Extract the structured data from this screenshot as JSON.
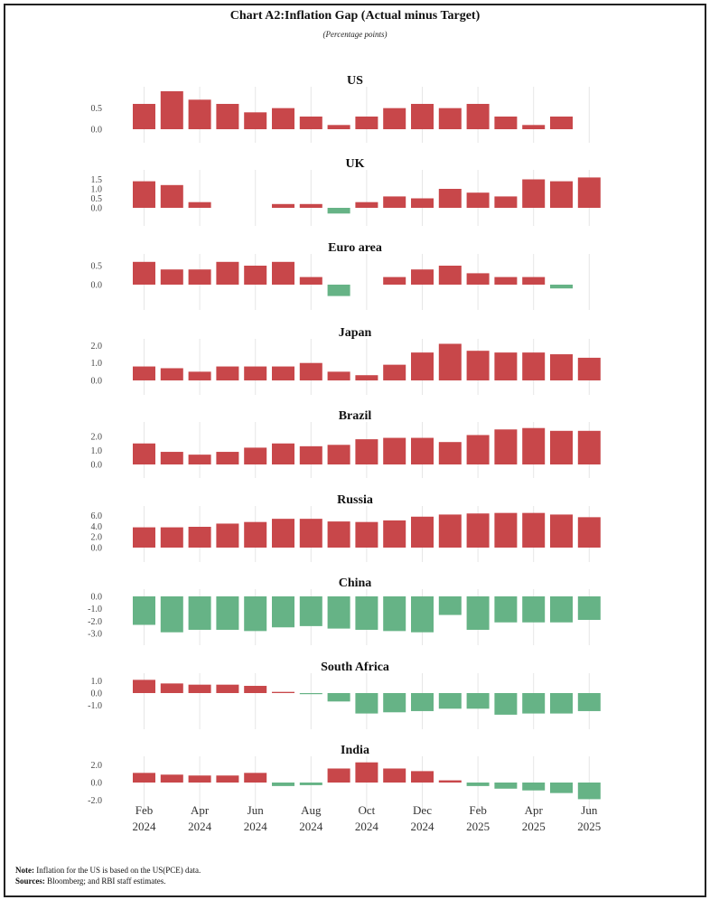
{
  "title": "Chart A2:Inflation Gap (Actual minus Target)",
  "subtitle": "(Percentage points)",
  "note_label": "Note:",
  "note_text": "Inflation for the US is based on the US(PCE) data.",
  "sources_label": "Sources:",
  "sources_text": "Bloomberg; and RBI staff estimates.",
  "colors": {
    "positive": "#C8474A",
    "negative": "#66B386",
    "grid": "#E6E6E6"
  },
  "chart_data": {
    "type": "bar",
    "layout": "small-multiples, vertically stacked, shared x axis",
    "grid": "vertical gridlines at labelled months",
    "months": [
      "Feb 2024",
      "Mar 2024",
      "Apr 2024",
      "May 2024",
      "Jun 2024",
      "Jul 2024",
      "Aug 2024",
      "Sep 2024",
      "Oct 2024",
      "Nov 2024",
      "Dec 2024",
      "Jan 2025",
      "Feb 2025",
      "Mar 2025",
      "Apr 2025",
      "May 2025",
      "Jun 2025"
    ],
    "x_tick_labels": [
      {
        "month": "Feb",
        "year": "2024"
      },
      {
        "month": "Apr",
        "year": "2024"
      },
      {
        "month": "Jun",
        "year": "2024"
      },
      {
        "month": "Aug",
        "year": "2024"
      },
      {
        "month": "Oct",
        "year": "2024"
      },
      {
        "month": "Dec",
        "year": "2024"
      },
      {
        "month": "Feb",
        "year": "2025"
      },
      {
        "month": "Apr",
        "year": "2025"
      },
      {
        "month": "Jun",
        "year": "2025"
      }
    ],
    "panels": [
      {
        "name": "US",
        "yticks": [
          "0.0",
          "0.5"
        ],
        "ylim": [
          0,
          1.0
        ],
        "values": [
          0.6,
          0.9,
          0.7,
          0.6,
          0.4,
          0.5,
          0.3,
          0.1,
          0.3,
          0.5,
          0.6,
          0.5,
          0.6,
          0.3,
          0.1,
          0.3,
          null
        ]
      },
      {
        "name": "UK",
        "yticks": [
          "0.0",
          "0.5",
          "1.0",
          "1.5"
        ],
        "ylim": [
          -0.5,
          1.7
        ],
        "values": [
          1.4,
          1.2,
          0.3,
          0.0,
          0.0,
          0.2,
          0.2,
          -0.3,
          0.3,
          0.6,
          0.5,
          1.0,
          0.8,
          0.6,
          1.5,
          1.4,
          1.6
        ]
      },
      {
        "name": "Euro area",
        "yticks": [
          "0.0",
          "0.5"
        ],
        "ylim": [
          -0.4,
          0.7
        ],
        "values": [
          0.6,
          0.4,
          0.4,
          0.6,
          0.5,
          0.6,
          0.2,
          -0.3,
          0.0,
          0.2,
          0.4,
          0.5,
          0.3,
          0.2,
          0.2,
          -0.1,
          null
        ]
      },
      {
        "name": "Japan",
        "yticks": [
          "0.0",
          "1.0",
          "2.0"
        ],
        "ylim": [
          0,
          2.2
        ],
        "values": [
          0.8,
          0.7,
          0.5,
          0.8,
          0.8,
          0.8,
          1.0,
          0.5,
          0.3,
          0.9,
          1.6,
          2.1,
          1.7,
          1.6,
          1.6,
          1.5,
          1.3
        ]
      },
      {
        "name": "Brazil",
        "yticks": [
          "0.0",
          "1.0",
          "2.0"
        ],
        "ylim": [
          0,
          2.7
        ],
        "values": [
          1.5,
          0.9,
          0.7,
          0.9,
          1.2,
          1.5,
          1.3,
          1.4,
          1.8,
          1.9,
          1.9,
          1.6,
          2.1,
          2.5,
          2.6,
          2.4,
          2.4
        ]
      },
      {
        "name": "Russia",
        "yticks": [
          "0.0",
          "2.0",
          "4.0",
          "6.0"
        ],
        "ylim": [
          0,
          6.6
        ],
        "values": [
          3.8,
          3.8,
          3.9,
          4.5,
          4.8,
          5.4,
          5.4,
          4.9,
          4.8,
          5.1,
          5.8,
          6.2,
          6.4,
          6.5,
          6.5,
          6.2,
          5.7
        ]
      },
      {
        "name": "China",
        "yticks": [
          "0.0",
          "-1.0",
          "-2.0",
          "-3.0"
        ],
        "ylim": [
          -3.0,
          0
        ],
        "values": [
          -2.3,
          -2.9,
          -2.7,
          -2.7,
          -2.8,
          -2.5,
          -2.4,
          -2.6,
          -2.7,
          -2.8,
          -2.9,
          -1.5,
          -2.7,
          -2.1,
          -2.1,
          -2.1,
          -1.9
        ]
      },
      {
        "name": "South Africa",
        "yticks": [
          "1.0",
          "0.0",
          "-1.0"
        ],
        "ylim": [
          -1.9,
          1.2
        ],
        "values": [
          1.1,
          0.8,
          0.7,
          0.7,
          0.6,
          0.1,
          -0.05,
          -0.7,
          -1.7,
          -1.6,
          -1.5,
          -1.3,
          -1.3,
          -1.8,
          -1.7,
          -1.7,
          -1.5
        ]
      },
      {
        "name": "India",
        "yticks": [
          "2.0",
          "0.0",
          "-2.0"
        ],
        "ylim": [
          -2.0,
          2.4
        ],
        "values": [
          1.1,
          0.9,
          0.8,
          0.8,
          1.1,
          -0.4,
          -0.3,
          1.6,
          2.3,
          1.6,
          1.3,
          0.25,
          -0.4,
          -0.7,
          -0.9,
          -1.2,
          -1.9
        ]
      }
    ]
  }
}
